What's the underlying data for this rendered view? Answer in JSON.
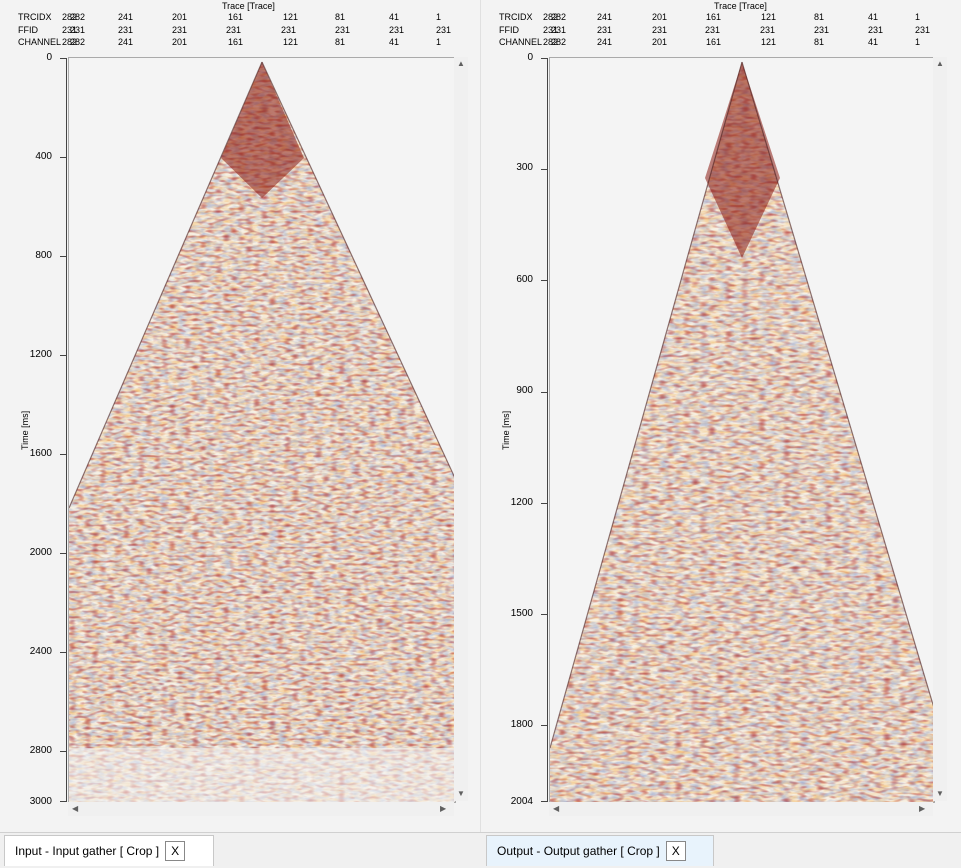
{
  "panels": [
    {
      "trace_title": "Trace [Trace]",
      "header_rows": [
        {
          "label": "TRCIDX",
          "values": [
            "282",
            "282",
            "241",
            "201",
            "161",
            "121",
            "81",
            "41",
            "1"
          ]
        },
        {
          "label": "FFID",
          "values": [
            "231",
            "231",
            "231",
            "231",
            "231",
            "231",
            "231",
            "231",
            "231"
          ]
        },
        {
          "label": "CHANNEL",
          "values": [
            "282",
            "282",
            "241",
            "201",
            "161",
            "121",
            "81",
            "41",
            "1"
          ]
        }
      ],
      "y_label": "Time [ms]",
      "y_ticks": [
        "0",
        "400",
        "800",
        "1200",
        "1600",
        "2000",
        "2400",
        "2800",
        "3000"
      ],
      "tab_label": "Input - Input gather [ Crop ]"
    },
    {
      "trace_title": "Trace [Trace]",
      "header_rows": [
        {
          "label": "TRCIDX",
          "values": [
            "282",
            "282",
            "241",
            "201",
            "161",
            "121",
            "81",
            "41",
            "1"
          ]
        },
        {
          "label": "FFID",
          "values": [
            "231",
            "231",
            "231",
            "231",
            "231",
            "231",
            "231",
            "231",
            "231"
          ]
        },
        {
          "label": "CHANNEL",
          "values": [
            "282",
            "282",
            "241",
            "201",
            "161",
            "121",
            "81",
            "41",
            "1"
          ]
        }
      ],
      "y_label": "Time [ms]",
      "y_ticks": [
        "0",
        "300",
        "600",
        "900",
        "1200",
        "1500",
        "1800",
        "2004"
      ],
      "tab_label": "Output - Output gather [ Crop ]"
    }
  ],
  "tab_close_glyph": "X",
  "colors": {
    "plot_bg": "#f4f4f4",
    "seismic_dark": "#5a0a0a",
    "seismic_red": "#c0261a",
    "seismic_orange": "#e8702a",
    "seismic_yellow": "#f5d060",
    "seismic_blue": "#6a7fb0",
    "active_tab": "#e8f3fc"
  }
}
